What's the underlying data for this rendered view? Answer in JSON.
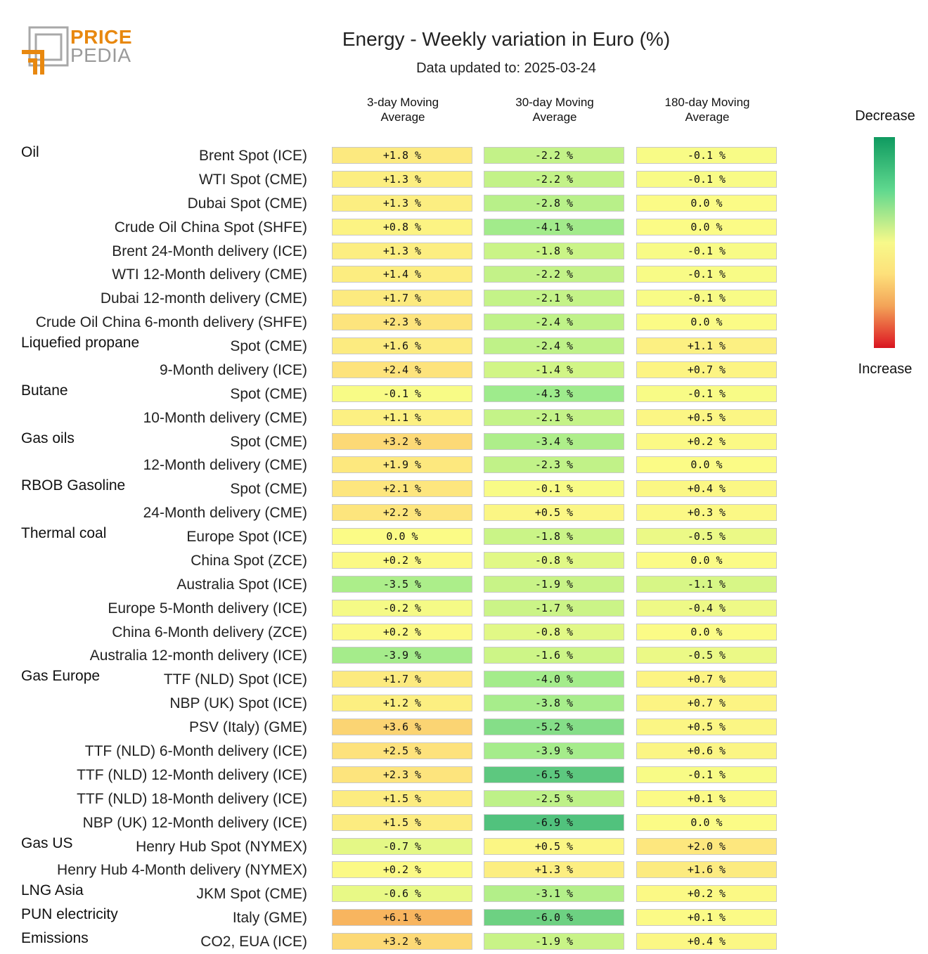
{
  "logo": {
    "line1": "PRICE",
    "line2": "PEDIA"
  },
  "header": {
    "title": "Energy - Weekly variation in Euro (%)",
    "subtitle": "Data updated to: 2025-03-24"
  },
  "legend": {
    "top": "Decrease",
    "bottom": "Increase"
  },
  "colors": {
    "green_strong": "#4cbf7c",
    "yellow": "#fbfb86",
    "orange": "#f7b35d"
  },
  "chart_data": {
    "type": "table",
    "title": "Energy - Weekly variation in Euro (%)",
    "columns": [
      "3-day Moving Average",
      "30-day Moving Average",
      "180-day Moving Average"
    ],
    "rows": [
      {
        "group": "Oil",
        "name": "Brent Spot (ICE)",
        "values": [
          1.8,
          -2.2,
          -0.1
        ],
        "labels": [
          "+1.8 %",
          "-2.2 %",
          "-0.1 %"
        ]
      },
      {
        "group": "",
        "name": "WTI Spot (CME)",
        "values": [
          1.3,
          -2.2,
          -0.1
        ],
        "labels": [
          "+1.3 %",
          "-2.2 %",
          "-0.1 %"
        ]
      },
      {
        "group": "",
        "name": "Dubai Spot (CME)",
        "values": [
          1.3,
          -2.8,
          0.0
        ],
        "labels": [
          "+1.3 %",
          "-2.8 %",
          "0.0 %"
        ]
      },
      {
        "group": "",
        "name": "Crude Oil China Spot (SHFE)",
        "values": [
          0.8,
          -4.1,
          0.0
        ],
        "labels": [
          "+0.8 %",
          "-4.1 %",
          "0.0 %"
        ]
      },
      {
        "group": "",
        "name": "Brent 24-Month delivery (ICE)",
        "values": [
          1.3,
          -1.8,
          -0.1
        ],
        "labels": [
          "+1.3 %",
          "-1.8 %",
          "-0.1 %"
        ]
      },
      {
        "group": "",
        "name": "WTI 12-Month delivery (CME)",
        "values": [
          1.4,
          -2.2,
          -0.1
        ],
        "labels": [
          "+1.4 %",
          "-2.2 %",
          "-0.1 %"
        ]
      },
      {
        "group": "",
        "name": "Dubai 12-month delivery (CME)",
        "values": [
          1.7,
          -2.1,
          -0.1
        ],
        "labels": [
          "+1.7 %",
          "-2.1 %",
          "-0.1 %"
        ]
      },
      {
        "group": "",
        "name": "Crude Oil China 6-month delivery (SHFE)",
        "values": [
          2.3,
          -2.4,
          0.0
        ],
        "labels": [
          "+2.3 %",
          "-2.4 %",
          "0.0 %"
        ]
      },
      {
        "group": "Liquefied propane",
        "name": "Spot (CME)",
        "values": [
          1.6,
          -2.4,
          1.1
        ],
        "labels": [
          "+1.6 %",
          "-2.4 %",
          "+1.1 %"
        ]
      },
      {
        "group": "",
        "name": "9-Month delivery (ICE)",
        "values": [
          2.4,
          -1.4,
          0.7
        ],
        "labels": [
          "+2.4 %",
          "-1.4 %",
          "+0.7 %"
        ]
      },
      {
        "group": "Butane",
        "name": "Spot (CME)",
        "values": [
          -0.1,
          -4.3,
          -0.1
        ],
        "labels": [
          "-0.1 %",
          "-4.3 %",
          "-0.1 %"
        ]
      },
      {
        "group": "",
        "name": "10-Month delivery (CME)",
        "values": [
          1.1,
          -2.1,
          0.5
        ],
        "labels": [
          "+1.1 %",
          "-2.1 %",
          "+0.5 %"
        ]
      },
      {
        "group": "Gas oils",
        "name": "Spot (CME)",
        "values": [
          3.2,
          -3.4,
          0.2
        ],
        "labels": [
          "+3.2 %",
          "-3.4 %",
          "+0.2 %"
        ]
      },
      {
        "group": "",
        "name": "12-Month delivery (CME)",
        "values": [
          1.9,
          -2.3,
          0.0
        ],
        "labels": [
          "+1.9 %",
          "-2.3 %",
          "0.0 %"
        ]
      },
      {
        "group": "RBOB Gasoline",
        "name": "Spot (CME)",
        "values": [
          2.1,
          -0.1,
          0.4
        ],
        "labels": [
          "+2.1 %",
          "-0.1 %",
          "+0.4 %"
        ]
      },
      {
        "group": "",
        "name": "24-Month delivery (CME)",
        "values": [
          2.2,
          0.5,
          0.3
        ],
        "labels": [
          "+2.2 %",
          "+0.5 %",
          "+0.3 %"
        ]
      },
      {
        "group": "Thermal coal",
        "name": "Europe Spot (ICE)",
        "values": [
          0.0,
          -1.8,
          -0.5
        ],
        "labels": [
          "0.0 %",
          "-1.8 %",
          "-0.5 %"
        ]
      },
      {
        "group": "",
        "name": "China Spot (ZCE)",
        "values": [
          0.2,
          -0.8,
          0.0
        ],
        "labels": [
          "+0.2 %",
          "-0.8 %",
          "0.0 %"
        ]
      },
      {
        "group": "",
        "name": "Australia Spot (ICE)",
        "values": [
          -3.5,
          -1.9,
          -1.1
        ],
        "labels": [
          "-3.5 %",
          "-1.9 %",
          "-1.1 %"
        ]
      },
      {
        "group": "",
        "name": "Europe 5-Month delivery (ICE)",
        "values": [
          -0.2,
          -1.7,
          -0.4
        ],
        "labels": [
          "-0.2 %",
          "-1.7 %",
          "-0.4 %"
        ]
      },
      {
        "group": "",
        "name": "China 6-Month delivery (ZCE)",
        "values": [
          0.2,
          -0.8,
          0.0
        ],
        "labels": [
          "+0.2 %",
          "-0.8 %",
          "0.0 %"
        ]
      },
      {
        "group": "",
        "name": "Australia 12-month delivery (ICE)",
        "values": [
          -3.9,
          -1.6,
          -0.5
        ],
        "labels": [
          "-3.9 %",
          "-1.6 %",
          "-0.5 %"
        ]
      },
      {
        "group": "Gas Europe",
        "name": "TTF (NLD) Spot (ICE)",
        "values": [
          1.7,
          -4.0,
          0.7
        ],
        "labels": [
          "+1.7 %",
          "-4.0 %",
          "+0.7 %"
        ]
      },
      {
        "group": "",
        "name": "NBP (UK) Spot (ICE)",
        "values": [
          1.2,
          -3.8,
          0.7
        ],
        "labels": [
          "+1.2 %",
          "-3.8 %",
          "+0.7 %"
        ]
      },
      {
        "group": "",
        "name": "PSV (Italy) (GME)",
        "values": [
          3.6,
          -5.2,
          0.5
        ],
        "labels": [
          "+3.6 %",
          "-5.2 %",
          "+0.5 %"
        ]
      },
      {
        "group": "",
        "name": "TTF (NLD) 6-Month delivery (ICE)",
        "values": [
          2.5,
          -3.9,
          0.6
        ],
        "labels": [
          "+2.5 %",
          "-3.9 %",
          "+0.6 %"
        ]
      },
      {
        "group": "",
        "name": "TTF (NLD) 12-Month delivery (ICE)",
        "values": [
          2.3,
          -6.5,
          -0.1
        ],
        "labels": [
          "+2.3 %",
          "-6.5 %",
          "-0.1 %"
        ]
      },
      {
        "group": "",
        "name": "TTF (NLD) 18-Month delivery (ICE)",
        "values": [
          1.5,
          -2.5,
          0.1
        ],
        "labels": [
          "+1.5 %",
          "-2.5 %",
          "+0.1 %"
        ]
      },
      {
        "group": "",
        "name": "NBP (UK) 12-Month delivery (ICE)",
        "values": [
          1.5,
          -6.9,
          0.0
        ],
        "labels": [
          "+1.5 %",
          "-6.9 %",
          "0.0 %"
        ]
      },
      {
        "group": "Gas US",
        "name": "Henry Hub Spot (NYMEX)",
        "values": [
          -0.7,
          0.5,
          2.0
        ],
        "labels": [
          "-0.7 %",
          "+0.5 %",
          "+2.0 %"
        ]
      },
      {
        "group": "",
        "name": "Henry Hub 4-Month delivery (NYMEX)",
        "values": [
          0.2,
          1.3,
          1.6
        ],
        "labels": [
          "+0.2 %",
          "+1.3 %",
          "+1.6 %"
        ]
      },
      {
        "group": "LNG Asia",
        "name": "JKM Spot (CME)",
        "values": [
          -0.6,
          -3.1,
          0.2
        ],
        "labels": [
          "-0.6 %",
          "-3.1 %",
          "+0.2 %"
        ]
      },
      {
        "group": "PUN electricity",
        "name": "Italy (GME)",
        "values": [
          6.1,
          -6.0,
          0.1
        ],
        "labels": [
          "+6.1 %",
          "-6.0 %",
          "+0.1 %"
        ]
      },
      {
        "group": "Emissions",
        "name": "CO2, EUA (ICE)",
        "values": [
          3.2,
          -1.9,
          0.4
        ],
        "labels": [
          "+3.2 %",
          "-1.9 %",
          "+0.4 %"
        ]
      }
    ]
  }
}
